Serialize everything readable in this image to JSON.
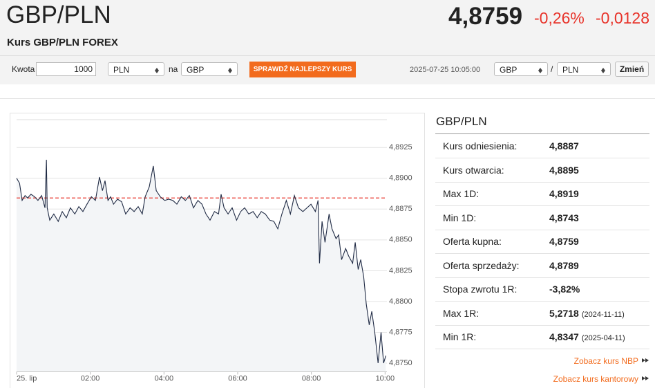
{
  "header": {
    "title": "GBP/PLN",
    "subtitle": "Kurs GBP/PLN FOREX",
    "price": "4,8759",
    "change_pct": "-0,26%",
    "change_abs": "-0,0128"
  },
  "form": {
    "amount_label": "Kwota",
    "amount": "1000",
    "from": "PLN",
    "to_label": "na",
    "to": "GBP",
    "check_button": "SPRAWDŹ NAJLEPSZY KURS",
    "timestamp": "2025-07-25 10:05:00",
    "base": "GBP",
    "separator": "/",
    "quote": "PLN",
    "change_button": "Zmień"
  },
  "panel": {
    "title": "GBP/PLN",
    "rows": [
      {
        "label": "Kurs odniesienia:",
        "value": "4,8887"
      },
      {
        "label": "Kurs otwarcia:",
        "value": "4,8895"
      },
      {
        "label": "Max 1D:",
        "value": "4,8919"
      },
      {
        "label": "Min 1D:",
        "value": "4,8743"
      },
      {
        "label": "Oferta kupna:",
        "value": "4,8759"
      },
      {
        "label": "Oferta sprzedaży:",
        "value": "4,8789"
      },
      {
        "label": "Stopa zwrotu 1R:",
        "value": "-3,82%"
      },
      {
        "label": "Max 1R:",
        "value": "5,2718",
        "date": "(2024-11-11)"
      },
      {
        "label": "Min 1R:",
        "value": "4,8347",
        "date": "(2025-04-11)"
      }
    ],
    "links": [
      "Zobacz kurs NBP",
      "Zobacz kurs kantorowy"
    ]
  },
  "chart_data": {
    "type": "line",
    "color": "#1f2a44",
    "area_color": "#f3f5f7",
    "reference_line": 4.8884,
    "reference_color": "#e8332a",
    "x": [
      0,
      0.08,
      0.15,
      0.23,
      0.3,
      0.39,
      0.49,
      0.58,
      0.68,
      0.77,
      0.81,
      0.83,
      0.9,
      1.01,
      1.13,
      1.24,
      1.35,
      1.46,
      1.58,
      1.69,
      1.8,
      1.91,
      2.03,
      2.14,
      2.25,
      2.33,
      2.4,
      2.48,
      2.55,
      2.63,
      2.74,
      2.85,
      2.96,
      3.08,
      3.19,
      3.3,
      3.41,
      3.49,
      3.6,
      3.71,
      3.79,
      3.9,
      4.02,
      4.13,
      4.24,
      4.35,
      4.47,
      4.58,
      4.69,
      4.8,
      4.92,
      5.03,
      5.14,
      5.25,
      5.37,
      5.48,
      5.55,
      5.63,
      5.74,
      5.85,
      5.97,
      6.08,
      6.19,
      6.3,
      6.42,
      6.53,
      6.64,
      6.75,
      6.87,
      6.98,
      7.09,
      7.2,
      7.32,
      7.43,
      7.54,
      7.65,
      7.77,
      7.88,
      7.99,
      8.11,
      8.18,
      8.22,
      8.29,
      8.37,
      8.48,
      8.56,
      8.67,
      8.74,
      8.82,
      8.93,
      9.01,
      9.12,
      9.19,
      9.27,
      9.34,
      9.42,
      9.49,
      9.57,
      9.64,
      9.72,
      9.81,
      9.89,
      9.96,
      10.02
    ],
    "values": [
      4.89,
      4.8896,
      4.8882,
      4.8886,
      4.8884,
      4.8887,
      4.8885,
      4.8882,
      4.8886,
      4.8876,
      4.8915,
      4.8876,
      4.8866,
      4.8871,
      4.8865,
      4.8873,
      4.8868,
      4.8876,
      4.8871,
      4.8877,
      4.8873,
      4.8879,
      4.8885,
      4.8882,
      4.8901,
      4.889,
      4.8898,
      4.8882,
      4.8885,
      4.8879,
      4.8883,
      4.8881,
      4.8871,
      4.8876,
      4.8873,
      4.8877,
      4.8871,
      4.8885,
      4.8893,
      4.891,
      4.889,
      4.8885,
      4.8882,
      4.8883,
      4.8882,
      4.8879,
      4.8885,
      4.8882,
      4.8886,
      4.8876,
      4.8882,
      4.8879,
      4.8871,
      4.8866,
      4.8873,
      4.8871,
      4.8887,
      4.8876,
      4.8871,
      4.8876,
      4.8866,
      4.8873,
      4.8876,
      4.8871,
      4.8873,
      4.8868,
      4.8873,
      4.8871,
      4.8866,
      4.8865,
      4.8859,
      4.8871,
      4.8882,
      4.8871,
      4.8886,
      4.8876,
      4.8873,
      4.8876,
      4.8879,
      4.8873,
      4.8882,
      4.8831,
      4.8865,
      4.8848,
      4.8871,
      4.8859,
      4.8851,
      4.8854,
      4.8834,
      4.8843,
      4.8837,
      4.8831,
      4.8848,
      4.8826,
      4.8834,
      4.882,
      4.8798,
      4.8781,
      4.8792,
      4.8775,
      4.875,
      4.8775,
      4.875,
      4.8756
    ],
    "xlim": [
      0,
      10.05
    ],
    "xticks": [
      {
        "value": 0,
        "label": "25. lip"
      },
      {
        "value": 2,
        "label": "02:00"
      },
      {
        "value": 4,
        "label": "04:00"
      },
      {
        "value": 6,
        "label": "06:00"
      },
      {
        "value": 8,
        "label": "08:00"
      },
      {
        "value": 10,
        "label": "10:00"
      }
    ],
    "ylim": [
      4.8743,
      4.8947
    ],
    "yticks": [
      {
        "value": 4.875,
        "label": "4,8750"
      },
      {
        "value": 4.8775,
        "label": "4,8775"
      },
      {
        "value": 4.88,
        "label": "4,8800"
      },
      {
        "value": 4.8825,
        "label": "4,8825"
      },
      {
        "value": 4.885,
        "label": "4,8850"
      },
      {
        "value": 4.8875,
        "label": "4,8875"
      },
      {
        "value": 4.89,
        "label": "4,8900"
      },
      {
        "value": 4.8925,
        "label": "4,8925"
      }
    ],
    "grid": true
  }
}
